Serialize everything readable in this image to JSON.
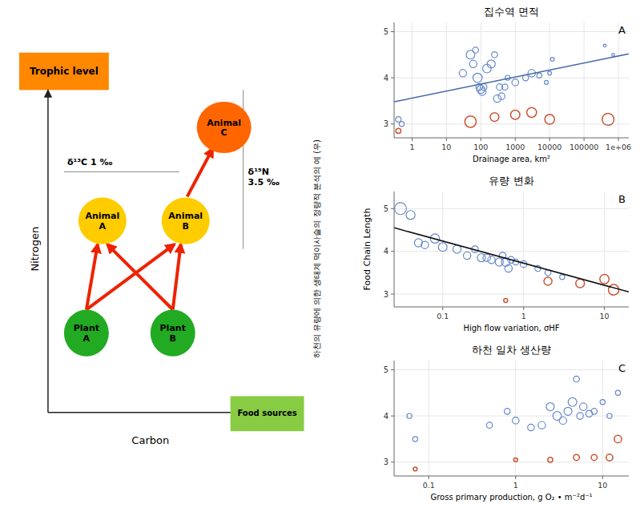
{
  "chart_data": [
    {
      "type": "diagram",
      "x_label": "Carbon",
      "y_label": "Nitrogen",
      "categories": [
        "Plant\nA",
        "Plant\nB",
        "Animal\nA",
        "Animal\nB",
        "Animal\nC"
      ],
      "colors": [
        "#22AA22",
        "#22AA22",
        "#FFCC00",
        "#FFCC00",
        "#FF6600"
      ],
      "annotations": [
        "Trophic level",
        "Food sources",
        "δ¹³C  1 ‰",
        "δ¹⁵N\n3.5 ‰",
        "하천의 유량에 의한 생태계 먹이사슬의 정량적 분석의 예 (우)"
      ]
    },
    {
      "type": "scatter",
      "title": "집수역 면적",
      "x_label": "Drainage area, km²",
      "log": "x",
      "xlim": [
        0.3,
        2000000
      ],
      "xticks": [
        1,
        10,
        100,
        1000,
        10000,
        100000,
        {
          "value": 1000000,
          "label": "1e+06"
        }
      ],
      "ylim": [
        2.7,
        5.2
      ],
      "yticks": [
        3,
        4,
        5
      ],
      "annotations": [
        "A"
      ],
      "series": [
        {
          "color": "#6688CC",
          "marker": "circle",
          "x": [
            0.4,
            0.5,
            30,
            50,
            60,
            70,
            80,
            90,
            100,
            110,
            120,
            150,
            200,
            250,
            300,
            350,
            400,
            500,
            600,
            1000,
            2000,
            3000,
            5000,
            8000,
            10000,
            12000,
            400000,
            700000
          ],
          "values": [
            3.1,
            3.0,
            4.1,
            4.5,
            4.3,
            4.6,
            4.0,
            3.8,
            3.75,
            3.7,
            3.8,
            4.2,
            4.3,
            4.5,
            3.55,
            3.8,
            3.6,
            3.8,
            4.0,
            3.9,
            4.0,
            4.1,
            4.05,
            3.9,
            4.1,
            4.4,
            4.7,
            4.5
          ],
          "sizes": [
            30,
            25,
            55,
            75,
            55,
            35,
            85,
            45,
            65,
            55,
            45,
            75,
            65,
            35,
            55,
            40,
            45,
            35,
            25,
            45,
            35,
            55,
            25,
            15,
            15,
            15,
            8,
            8
          ]
        },
        {
          "color": "#CC5533",
          "marker": "circle",
          "x": [
            0.4,
            50,
            250,
            1000,
            3000,
            10000,
            500000
          ],
          "values": [
            2.85,
            3.05,
            3.15,
            3.2,
            3.25,
            3.1,
            3.1
          ],
          "sizes": [
            25,
            130,
            75,
            85,
            95,
            95,
            140
          ]
        },
        {
          "type": "line",
          "color": "#4466AA",
          "x": [
            0.301995172040202,
            1995262.31496888
          ],
          "values": [
            3.48,
            4.52
          ]
        }
      ]
    },
    {
      "type": "scatter",
      "title": "유량 변화",
      "x_label": "High flow variation, σHF",
      "y_label": "Food Chain Length",
      "log": "x",
      "xlim": [
        0.025,
        20
      ],
      "xticks": [
        0.1,
        1,
        10
      ],
      "ylim": [
        2.7,
        5.4
      ],
      "yticks": [
        3,
        4,
        5
      ],
      "annotations": [
        "B"
      ],
      "series": [
        {
          "color": "#6688CC",
          "marker": "circle",
          "x": [
            0.03,
            0.04,
            0.05,
            0.06,
            0.08,
            0.1,
            0.15,
            0.2,
            0.25,
            0.3,
            0.35,
            0.4,
            0.5,
            0.55,
            0.6,
            0.65,
            0.7,
            0.8,
            1.0,
            1.5,
            2.0,
            3.0
          ],
          "values": [
            5.0,
            4.85,
            4.2,
            4.15,
            4.3,
            4.1,
            4.05,
            3.9,
            4.05,
            3.85,
            3.85,
            3.8,
            3.75,
            3.9,
            3.75,
            3.6,
            3.8,
            3.75,
            3.7,
            3.6,
            3.5,
            3.4
          ],
          "sizes": [
            140,
            80,
            65,
            55,
            85,
            75,
            65,
            55,
            45,
            65,
            55,
            55,
            65,
            45,
            75,
            55,
            45,
            35,
            45,
            35,
            35,
            25
          ]
        },
        {
          "color": "#CC5533",
          "marker": "circle",
          "x": [
            0.6,
            2.0,
            5.0,
            10.0,
            13.0
          ],
          "values": [
            2.85,
            3.3,
            3.25,
            3.35,
            3.1
          ],
          "sizes": [
            15,
            65,
            75,
            85,
            110
          ]
        },
        {
          "type": "line",
          "color": "#111111",
          "x": [
            0.0251188643150958,
            19.9526231496888
          ],
          "values": [
            4.55,
            3.05
          ]
        }
      ]
    },
    {
      "type": "scatter",
      "title": "하천 일차 생산량",
      "x_label": "Gross primary production, g O₂ • m⁻²d⁻¹",
      "log": "x",
      "xlim": [
        0.04,
        20
      ],
      "xticks": [
        0.1,
        1,
        10
      ],
      "ylim": [
        2.7,
        5.2
      ],
      "yticks": [
        3,
        4,
        5
      ],
      "annotations": [
        "C"
      ],
      "series": [
        {
          "color": "#6688CC",
          "marker": "circle",
          "x": [
            0.06,
            0.07,
            0.5,
            0.8,
            1.0,
            1.5,
            2.0,
            2.5,
            3.0,
            3.5,
            4.0,
            4.5,
            5.0,
            5.5,
            6.0,
            7.0,
            8.0,
            10.0,
            12.0,
            15.0
          ],
          "values": [
            4.0,
            3.5,
            3.8,
            4.1,
            3.9,
            3.75,
            3.8,
            4.2,
            4.0,
            3.9,
            4.1,
            4.3,
            4.8,
            4.0,
            4.2,
            4.05,
            4.1,
            4.3,
            4.0,
            4.5
          ],
          "sizes": [
            25,
            25,
            35,
            35,
            45,
            45,
            55,
            65,
            75,
            55,
            65,
            75,
            35,
            45,
            55,
            45,
            35,
            25,
            25,
            25
          ]
        },
        {
          "color": "#CC5533",
          "marker": "circle",
          "x": [
            0.07,
            1.0,
            2.5,
            5.0,
            8.0,
            12.0,
            15.0
          ],
          "values": [
            2.85,
            3.05,
            3.05,
            3.1,
            3.1,
            3.1,
            3.5
          ],
          "sizes": [
            15,
            15,
            25,
            35,
            35,
            45,
            55
          ]
        }
      ]
    }
  ]
}
